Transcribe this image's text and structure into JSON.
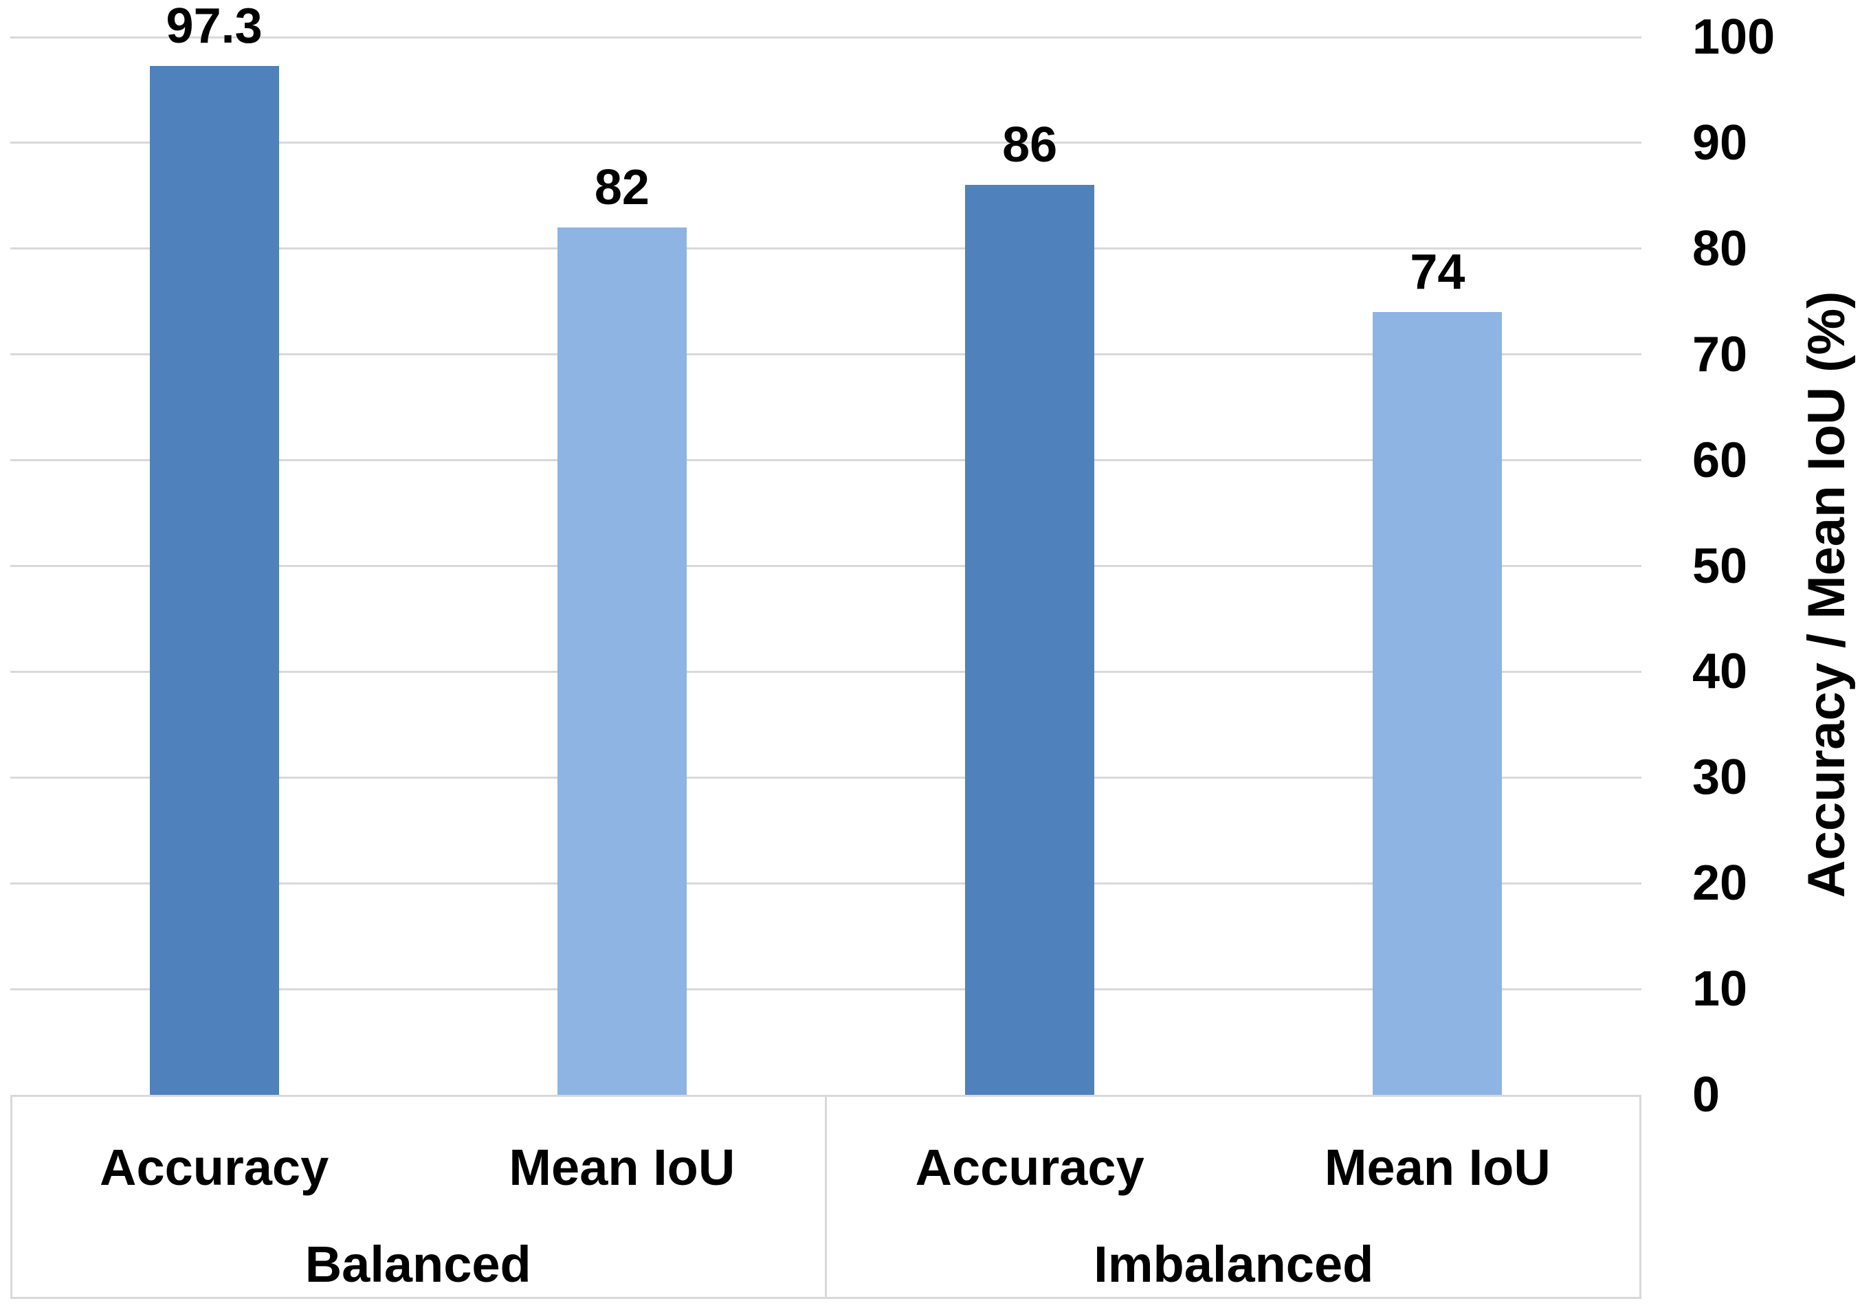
{
  "chart_data": {
    "type": "bar",
    "title": "",
    "xlabel": "",
    "ylabel": "Accuracy / Mean IoU (%)",
    "y_axis_side": "right",
    "ylim": [
      0,
      100
    ],
    "ytick_step": 10,
    "yticks": [
      0,
      10,
      20,
      30,
      40,
      50,
      60,
      70,
      80,
      90,
      100
    ],
    "ytick_labels": [
      "0",
      "10",
      "20",
      "30",
      "40",
      "50",
      "60",
      "70",
      "80",
      "90",
      "100"
    ],
    "grid": true,
    "legend": "none",
    "groups": [
      "Balanced",
      "Imbalanced"
    ],
    "categories_per_group": [
      "Accuracy",
      "Mean IoU"
    ],
    "series": [
      {
        "name": "Accuracy",
        "color": "#4F81BD",
        "values": [
          97.3,
          86
        ]
      },
      {
        "name": "Mean IoU",
        "color": "#8DB4E2",
        "values": [
          82,
          74
        ]
      }
    ],
    "bars": [
      {
        "group": "Balanced",
        "category": "Accuracy",
        "value": 97.3,
        "label": "97.3",
        "color": "#4F81BD"
      },
      {
        "group": "Balanced",
        "category": "Mean IoU",
        "value": 82,
        "label": "82",
        "color": "#8DB4E2"
      },
      {
        "group": "Imbalanced",
        "category": "Accuracy",
        "value": 86,
        "label": "86",
        "color": "#4F81BD"
      },
      {
        "group": "Imbalanced",
        "category": "Mean IoU",
        "value": 74,
        "label": "74",
        "color": "#8DB4E2"
      }
    ],
    "colors": {
      "accuracy_bar": "#4F81BD",
      "mean_iou_bar": "#8DB4E2",
      "gridline": "#D9D9D9",
      "axis_box_border": "#D9D9D9",
      "text": "#000000",
      "background": "#FFFFFF"
    }
  }
}
